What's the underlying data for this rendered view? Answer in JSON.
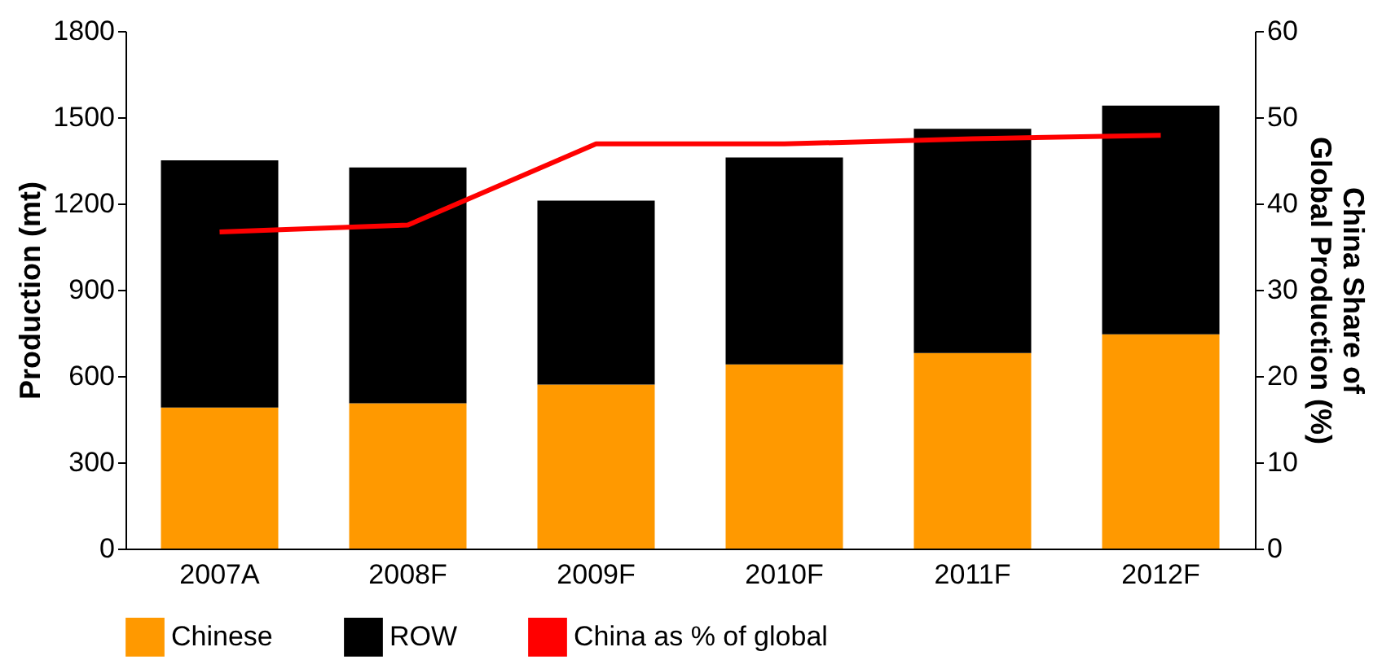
{
  "chart_data": {
    "type": "bar",
    "stacked": true,
    "categories": [
      "2007A",
      "2008F",
      "2009F",
      "2010F",
      "2011F",
      "2012F"
    ],
    "ylabel": "Production (mt)",
    "y2label": "China Share of Global Production (%)",
    "ylim": [
      0,
      1800
    ],
    "yticks": [
      0,
      300,
      600,
      900,
      1200,
      1500,
      1800
    ],
    "y2lim": [
      0,
      60
    ],
    "y2ticks": [
      0,
      10,
      20,
      30,
      40,
      50,
      60
    ],
    "series": [
      {
        "name": "Chinese",
        "color": "#ff9900",
        "values": [
          490,
          505,
          570,
          640,
          680,
          745
        ]
      },
      {
        "name": "ROW",
        "color": "#000000",
        "values": [
          860,
          820,
          640,
          720,
          780,
          795
        ]
      },
      {
        "name": "China as % of global",
        "color": "#ff0000",
        "type": "line",
        "axis": "y2",
        "values": [
          36.7,
          37.5,
          46.9,
          46.9,
          47.5,
          47.9
        ]
      }
    ],
    "grid": false,
    "legend": "bottom",
    "marker": "none",
    "line_style": "solid"
  }
}
